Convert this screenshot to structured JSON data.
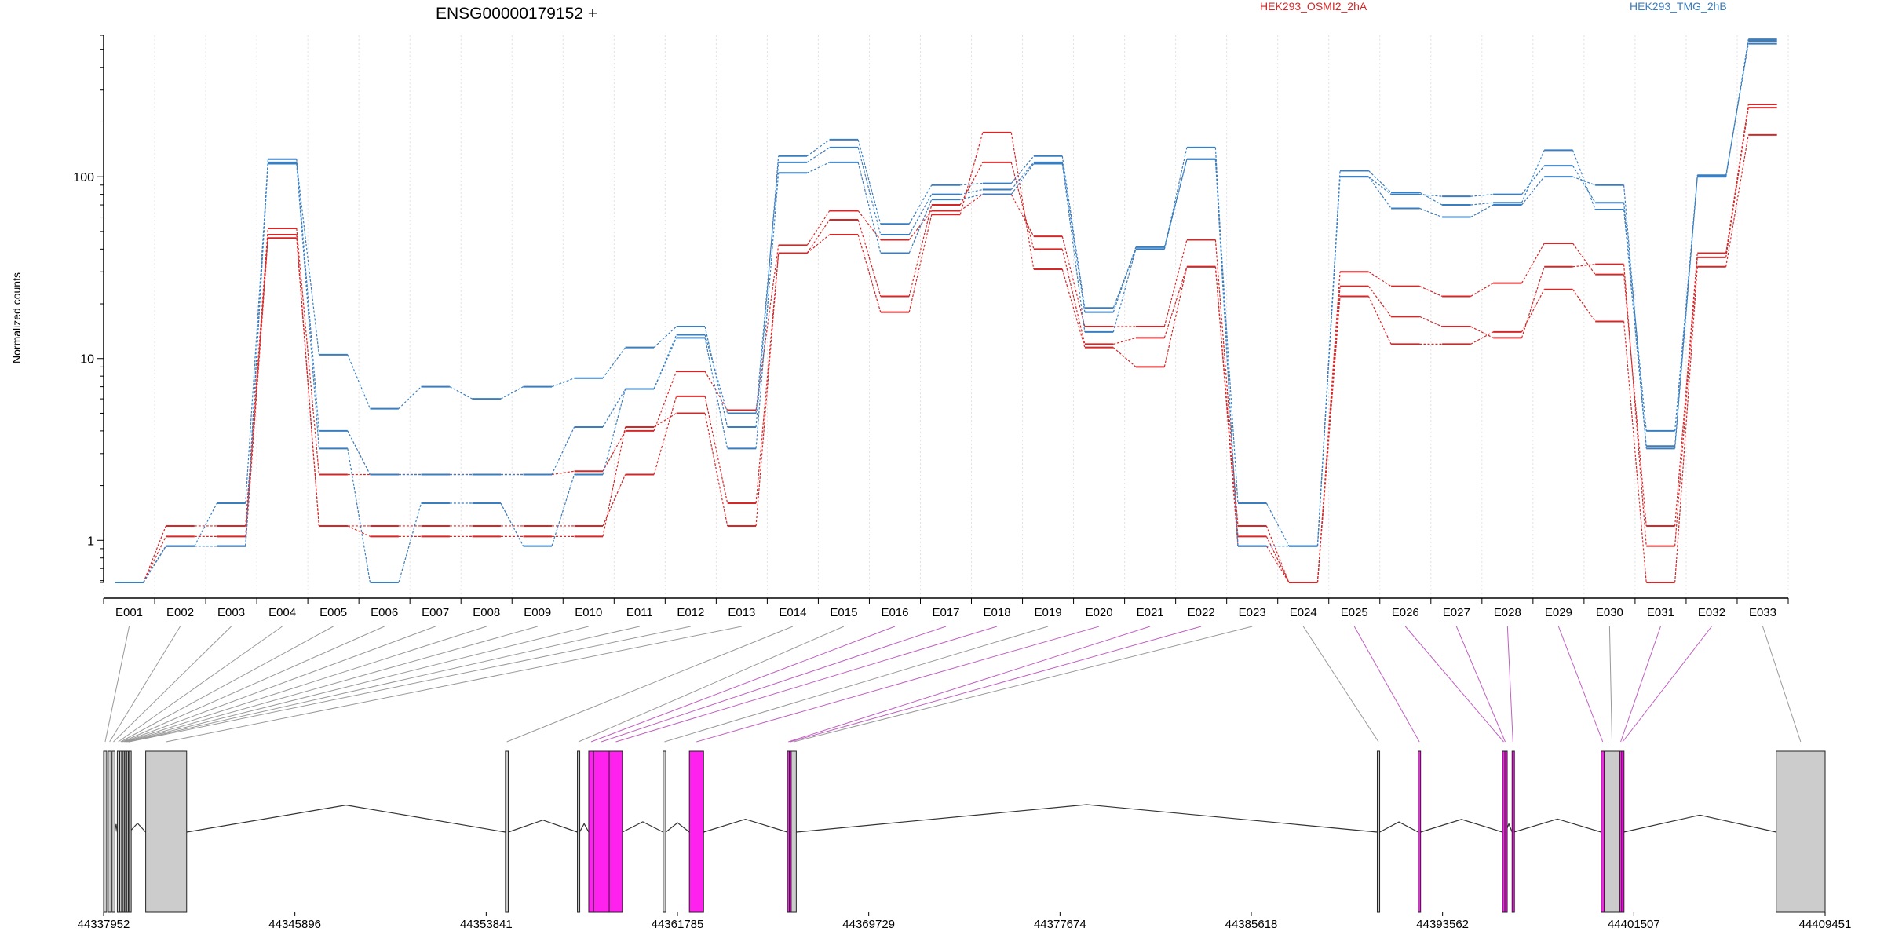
{
  "chart_data": {
    "type": "line",
    "title": "ENSG00000179152 +",
    "ylabel": "Normalized counts",
    "yscale": "log",
    "ylim": [
      0.5,
      600
    ],
    "yticks": [
      1,
      10,
      100
    ],
    "ytick_labels": [
      "1",
      "10",
      "100"
    ],
    "grid": "vertical-dotted",
    "legend": "top",
    "categories": [
      "E001",
      "E002",
      "E003",
      "E004",
      "E005",
      "E006",
      "E007",
      "E008",
      "E009",
      "E010",
      "E011",
      "E012",
      "E013",
      "E014",
      "E015",
      "E016",
      "E017",
      "E018",
      "E019",
      "E020",
      "E021",
      "E022",
      "E023",
      "E024",
      "E025",
      "E026",
      "E027",
      "E028",
      "E029",
      "E030",
      "E031",
      "E032",
      "E033"
    ],
    "series": [
      {
        "name": "HEK293_OSMI2_2hA",
        "group": "HEK293_OSMI2_2hA",
        "color": "#d62728",
        "values": [
          0.5,
          1.2,
          1.2,
          52,
          2.3,
          2.3,
          2.3,
          2.3,
          2.3,
          2.4,
          4.0,
          8.5,
          5.2,
          42,
          65,
          45,
          65,
          80,
          47,
          15,
          15,
          45,
          1.2,
          0.5,
          30,
          25,
          22,
          26,
          43,
          29,
          1.2,
          38,
          250
        ]
      },
      {
        "name": "",
        "group": "HEK293_OSMI2_2hA",
        "color": "#d62728",
        "values": [
          0.5,
          1.05,
          1.05,
          48,
          1.2,
          1.2,
          1.2,
          1.2,
          1.2,
          1.2,
          2.3,
          6.2,
          1.6,
          38,
          58,
          22,
          70,
          120,
          40,
          12,
          13,
          32,
          1.05,
          0.5,
          25,
          17,
          15,
          13,
          32,
          33,
          0.93,
          36,
          240
        ]
      },
      {
        "name": "",
        "group": "HEK293_OSMI2_2hA",
        "color": "#d62728",
        "values": [
          0.5,
          0.93,
          0.93,
          46,
          1.2,
          1.05,
          1.05,
          1.05,
          1.05,
          1.05,
          4.2,
          5.0,
          1.2,
          38,
          48,
          18,
          62,
          175,
          31,
          11.5,
          9,
          32,
          0.93,
          0.5,
          22,
          12,
          12,
          14,
          24,
          16,
          0.5,
          32,
          170
        ]
      },
      {
        "name": "HEK293_TMG_2hB",
        "group": "HEK293_TMG_2hB",
        "color": "#3a7ebf",
        "values": [
          0.5,
          0.93,
          0.93,
          125,
          4.0,
          2.3,
          2.3,
          2.3,
          2.3,
          4.2,
          6.8,
          13.5,
          5.0,
          120,
          145,
          48,
          80,
          85,
          120,
          18,
          41,
          125,
          1.6,
          0.93,
          100,
          80,
          78,
          80,
          115,
          72,
          4.0,
          100,
          560
        ]
      },
      {
        "name": "",
        "group": "HEK293_TMG_2hB",
        "color": "#3a7ebf",
        "values": [
          0.5,
          0.93,
          1.6,
          120,
          10.5,
          5.3,
          7.0,
          6.0,
          7.0,
          7.8,
          11.5,
          15,
          4.2,
          130,
          160,
          55,
          90,
          92,
          130,
          19,
          40,
          145,
          0.93,
          0.93,
          108,
          82,
          70,
          72,
          140,
          66,
          3.3,
          102,
          540
        ]
      },
      {
        "name": "",
        "group": "HEK293_TMG_2hB",
        "color": "#3a7ebf",
        "values": [
          0.5,
          0.93,
          0.93,
          118,
          3.2,
          0.5,
          1.6,
          1.6,
          0.93,
          2.3,
          6.8,
          13,
          3.2,
          105,
          120,
          38,
          75,
          80,
          118,
          14,
          40,
          125,
          0.93,
          0.93,
          100,
          67,
          60,
          70,
          100,
          90,
          3.2,
          100,
          570
        ]
      }
    ],
    "gene_model": {
      "coordinate_labels": [
        "44337952",
        "44345896",
        "44353841",
        "44361785",
        "44369729",
        "44377674",
        "44385618",
        "44393562",
        "44401507",
        "44409451"
      ],
      "coordinate_values": [
        44337952,
        44345896,
        44353841,
        44361785,
        44369729,
        44377674,
        44385618,
        44393562,
        44401507,
        44409451
      ],
      "xlim": [
        44337952,
        44409451
      ],
      "exons": [
        {
          "id": "E001",
          "start": 44337952,
          "end": 44338080,
          "tested": true,
          "significant": false
        },
        {
          "id": "E002",
          "start": 44338140,
          "end": 44338260,
          "tested": true,
          "significant": false
        },
        {
          "id": "E003",
          "start": 44338300,
          "end": 44338420,
          "tested": true,
          "significant": false
        },
        {
          "id": "E004",
          "start": 44338520,
          "end": 44338600,
          "tested": true,
          "significant": false
        },
        {
          "id": "E005",
          "start": 44338620,
          "end": 44338700,
          "tested": true,
          "significant": false
        },
        {
          "id": "E006",
          "start": 44338700,
          "end": 44338760,
          "tested": true,
          "significant": false
        },
        {
          "id": "E007",
          "start": 44338760,
          "end": 44338820,
          "tested": true,
          "significant": false
        },
        {
          "id": "E008",
          "start": 44338820,
          "end": 44338870,
          "tested": true,
          "significant": false
        },
        {
          "id": "E009",
          "start": 44338870,
          "end": 44338920,
          "tested": true,
          "significant": false
        },
        {
          "id": "E010",
          "start": 44338920,
          "end": 44338980,
          "tested": true,
          "significant": false
        },
        {
          "id": "E011",
          "start": 44338980,
          "end": 44339000,
          "tested": true,
          "significant": false
        },
        {
          "id": "E012",
          "start": 44339000,
          "end": 44339020,
          "tested": true,
          "significant": false
        },
        {
          "id": "E013",
          "start": 44339700,
          "end": 44341400,
          "tested": false,
          "significant": false
        },
        {
          "id": "E014",
          "start": 44354640,
          "end": 44354760,
          "tested": true,
          "significant": false
        },
        {
          "id": "E015",
          "start": 44357630,
          "end": 44357720,
          "tested": true,
          "significant": false
        },
        {
          "id": "E016",
          "start": 44358100,
          "end": 44358300,
          "tested": true,
          "significant": true
        },
        {
          "id": "E017",
          "start": 44358300,
          "end": 44358950,
          "tested": true,
          "significant": true
        },
        {
          "id": "E018",
          "start": 44358950,
          "end": 44359500,
          "tested": true,
          "significant": true
        },
        {
          "id": "E019",
          "start": 44361190,
          "end": 44361300,
          "tested": true,
          "significant": false
        },
        {
          "id": "E020",
          "start": 44362280,
          "end": 44362870,
          "tested": true,
          "significant": true
        },
        {
          "id": "E021",
          "start": 44366350,
          "end": 44366430,
          "tested": true,
          "significant": true
        },
        {
          "id": "E022",
          "start": 44366430,
          "end": 44366510,
          "tested": true,
          "significant": true
        },
        {
          "id": "E023",
          "start": 44366510,
          "end": 44366720,
          "tested": true,
          "significant": false
        },
        {
          "id": "E024",
          "start": 44390850,
          "end": 44390950,
          "tested": true,
          "significant": false
        },
        {
          "id": "E025",
          "start": 44392550,
          "end": 44392650,
          "tested": true,
          "significant": true
        },
        {
          "id": "E026",
          "start": 44396050,
          "end": 44396150,
          "tested": true,
          "significant": true
        },
        {
          "id": "E027",
          "start": 44396150,
          "end": 44396180,
          "tested": true,
          "significant": true
        },
        {
          "id": "E028",
          "start": 44396450,
          "end": 44396520,
          "tested": true,
          "significant": true
        },
        {
          "id": "E029",
          "start": 44400150,
          "end": 44400280,
          "tested": true,
          "significant": true
        },
        {
          "id": "E030",
          "start": 44400280,
          "end": 44400920,
          "tested": true,
          "significant": false
        },
        {
          "id": "E031",
          "start": 44400920,
          "end": 44401000,
          "tested": true,
          "significant": true
        },
        {
          "id": "E032",
          "start": 44401000,
          "end": 44401080,
          "tested": true,
          "significant": true
        },
        {
          "id": "E033",
          "start": 44407420,
          "end": 44409451,
          "tested": true,
          "significant": false
        }
      ]
    },
    "colors": {
      "significant": "#ff22ee",
      "non_significant": "#cccccc",
      "connector": "#999999",
      "connector_significant": "#c060c0"
    }
  }
}
